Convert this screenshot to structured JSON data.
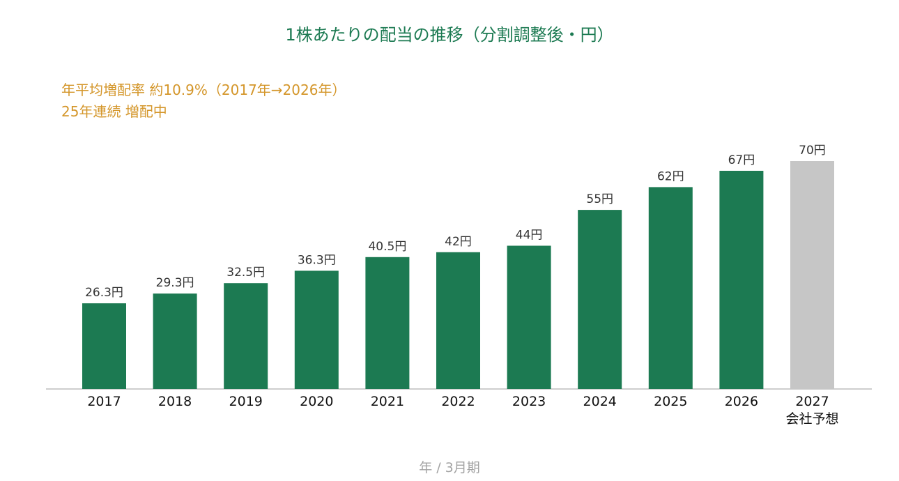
{
  "chart_data": {
    "type": "bar",
    "title": "1株あたりの配当の推移（分割調整後・円）",
    "annotations": [
      "年平均増配率 約10.9%（2017年→2026年）",
      "25年連続 増配中"
    ],
    "xlabel": "年 / 3月期",
    "ylabel": "",
    "categories": [
      "2017",
      "2018",
      "2019",
      "2020",
      "2021",
      "2022",
      "2023",
      "2024",
      "2025",
      "2026",
      "2027"
    ],
    "category_sublabels": [
      "",
      "",
      "",
      "",
      "",
      "",
      "",
      "",
      "",
      "",
      "会社予想"
    ],
    "values": [
      26.3,
      29.3,
      32.5,
      36.3,
      40.5,
      42,
      44,
      55,
      62,
      67,
      70
    ],
    "value_labels": [
      "26.3円",
      "29.3円",
      "32.5円",
      "36.3円",
      "40.5円",
      "42円",
      "44円",
      "55円",
      "62円",
      "67円",
      "70円"
    ],
    "bar_colors": [
      "#1c7a52",
      "#1c7a52",
      "#1c7a52",
      "#1c7a52",
      "#1c7a52",
      "#1c7a52",
      "#1c7a52",
      "#1c7a52",
      "#1c7a52",
      "#1c7a52",
      "#c6c6c6"
    ],
    "ylim": [
      0,
      70
    ],
    "grid": false,
    "legend": "none"
  },
  "colors": {
    "actual": "#1c7a52",
    "forecast": "#c6c6c6",
    "title": "#1c7a52",
    "annotation": "#d4962a",
    "axis_label": "#a3a3a3"
  }
}
